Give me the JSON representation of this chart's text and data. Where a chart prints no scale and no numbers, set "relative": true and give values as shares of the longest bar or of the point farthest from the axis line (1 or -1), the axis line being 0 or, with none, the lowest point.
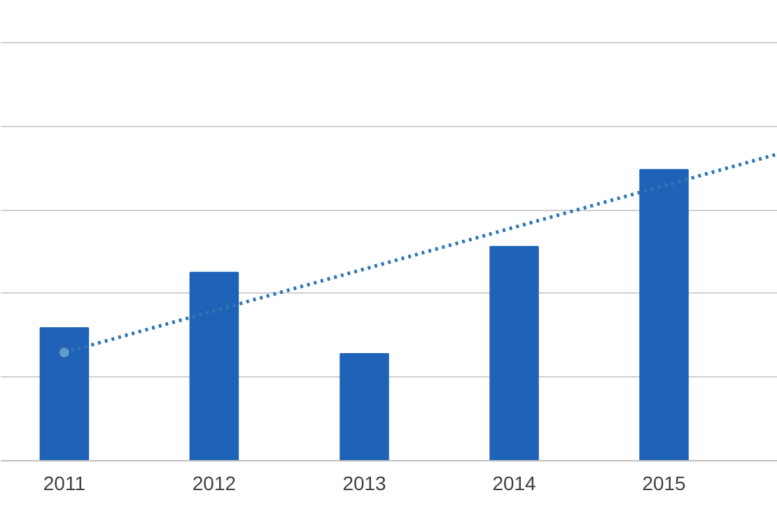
{
  "chart_data": {
    "type": "bar",
    "relative": true,
    "x": [
      "2011",
      "2012",
      "2013",
      "2014",
      "2015"
    ],
    "xlim": [
      "2010-07-30",
      "2015-10-05"
    ],
    "xticks": [
      "2011",
      "2012",
      "2013",
      "2014",
      "2015"
    ],
    "grid": "y",
    "series": [
      {
        "color": "#1e63b8",
        "values": [
          0.433,
          0.614,
          0.349,
          0.698,
          0.949
        ]
      },
      {
        "type": "line",
        "color": "#2e75b6",
        "line_style": "dotted",
        "x": [
          "2011",
          "2015-10-05"
        ],
        "values": [
          0.353,
          1.0
        ]
      },
      {
        "type": "scatter",
        "color": "#5b9bd5",
        "marker": "circle",
        "x": [
          "2011"
        ],
        "values": [
          0.353
        ]
      }
    ]
  }
}
